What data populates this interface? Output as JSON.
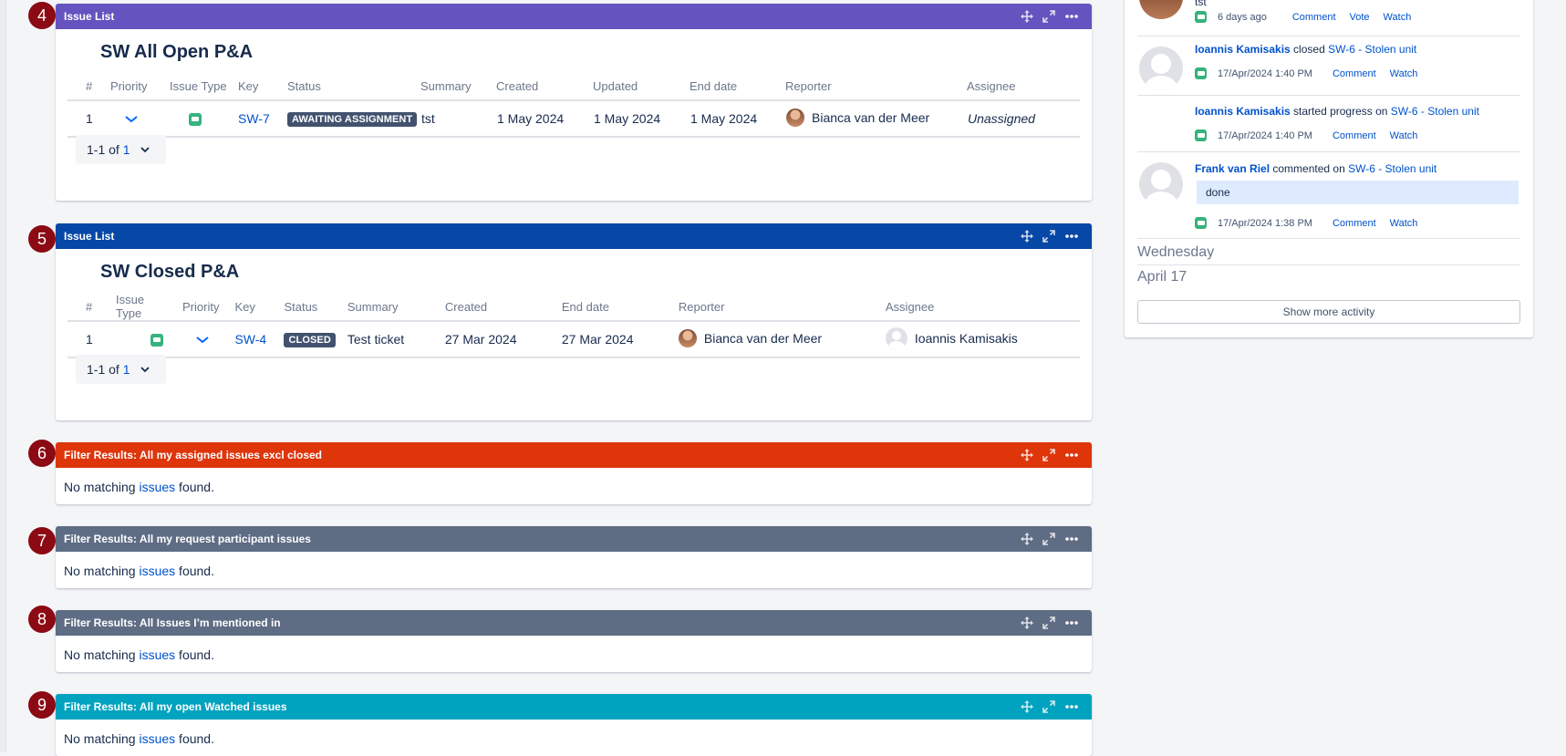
{
  "gadget_controls": {
    "move": "move-icon",
    "maximize": "expand-icon",
    "menu": "more-icon"
  },
  "gadgets": [
    {
      "badge": "4",
      "header": "Issue List",
      "color": "#6554c0",
      "title": "SW All Open P&A"
    },
    {
      "badge": "5",
      "header": "Issue List",
      "color": "#0747a6",
      "title": "SW Closed P&A"
    },
    {
      "badge": "6",
      "header": "Filter Results: All my assigned issues excl closed",
      "color": "#de350b"
    },
    {
      "badge": "7",
      "header": "Filter Results: All my request participant issues",
      "color": "#5e6c84"
    },
    {
      "badge": "8",
      "header": "Filter Results: All Issues I’m mentioned in",
      "color": "#5e6c84"
    },
    {
      "badge": "9",
      "header": "Filter Results: All my open Watched issues",
      "color": "#00a3bf"
    }
  ],
  "no_match": {
    "before": "No matching ",
    "link": "issues",
    "after": " found."
  },
  "open_table": {
    "headers": [
      "#",
      "Priority",
      "Issue Type",
      "Key",
      "Status",
      "Summary",
      "Created",
      "Updated",
      "End date",
      "Reporter",
      "Assignee"
    ],
    "row": {
      "num": "1",
      "key": "SW-7",
      "status": "AWAITING ASSIGNMENT",
      "summary": "tst",
      "created": "1 May 2024",
      "updated": "1 May 2024",
      "end": "1 May 2024",
      "reporter": "Bianca van der Meer",
      "assignee": "Unassigned"
    }
  },
  "closed_table": {
    "headers": [
      "#",
      "Issue Type",
      "Priority",
      "Key",
      "Status",
      "Summary",
      "Created",
      "End date",
      "Reporter",
      "Assignee"
    ],
    "row": {
      "num": "1",
      "key": "SW-4",
      "status": "CLOSED",
      "summary": "Test ticket",
      "created": "27 Mar 2024",
      "end": "27 Mar 2024",
      "reporter": "Bianca van der Meer",
      "assignee": "Ioannis Kamisakis"
    }
  },
  "pager": {
    "prefix": "1-1 of ",
    "total": "1"
  },
  "activity": {
    "top_text": "tst",
    "top_meta": {
      "time": "6 days ago",
      "a1": "Comment",
      "a2": "Vote",
      "a3": "Watch"
    },
    "item1": {
      "who": "Ioannis Kamisakis",
      "verb": " closed ",
      "key": "SW-6",
      "title": " - Stolen unit",
      "time": "17/Apr/2024 1:40 PM",
      "a1": "Comment",
      "a2": "Watch"
    },
    "item2": {
      "who": "Ioannis Kamisakis",
      "verb": " started progress on ",
      "key": "SW-6",
      "title": " - Stolen unit",
      "time": "17/Apr/2024 1:40 PM",
      "a1": "Comment",
      "a2": "Watch"
    },
    "item3": {
      "who": "Frank van Riel",
      "verb": " commented on ",
      "key": "SW-6",
      "title": " - Stolen unit",
      "quote": "done",
      "time": "17/Apr/2024 1:38 PM",
      "a1": "Comment",
      "a2": "Watch"
    },
    "day1": "Wednesday",
    "day2": "April 17",
    "show_more": "Show more activity"
  }
}
